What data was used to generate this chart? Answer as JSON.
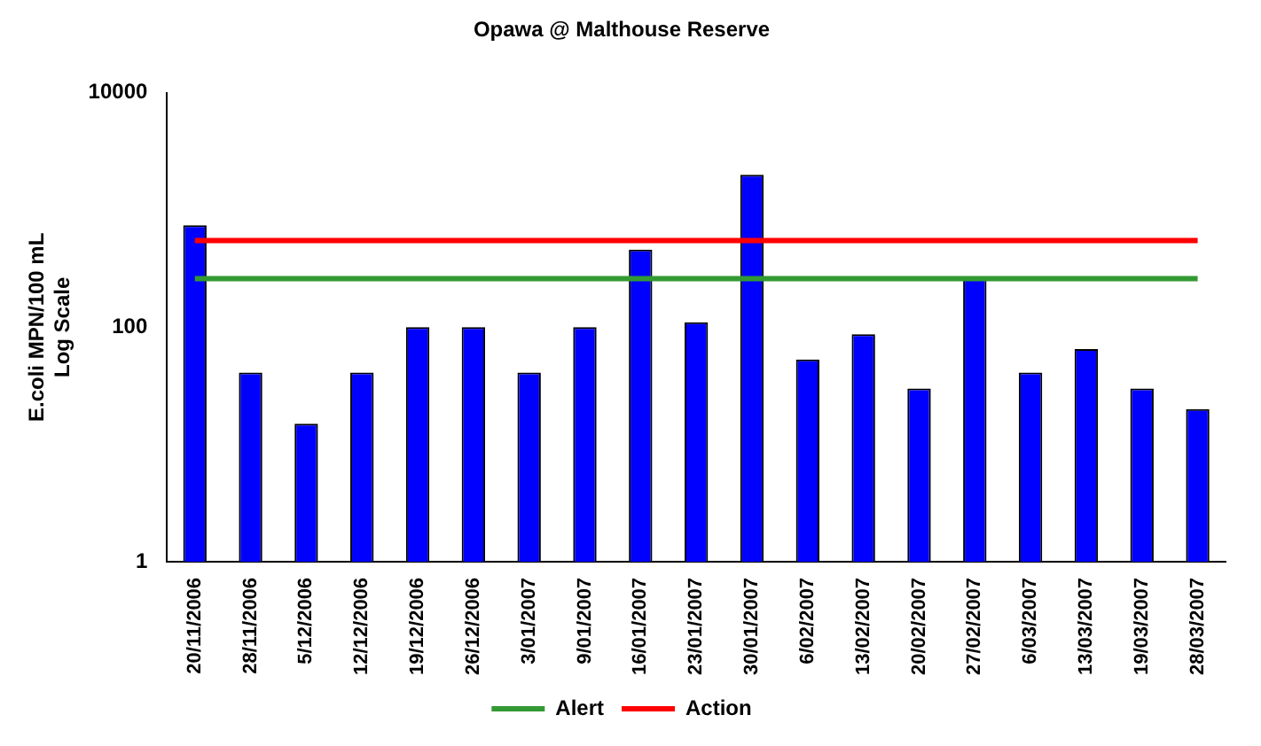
{
  "chart_data": {
    "type": "bar",
    "title": "Opawa @ Malthouse Reserve",
    "ylabel": "E.coli MPN/100 mL\nLog Scale",
    "categories": [
      "20/11/2006",
      "28/11/2006",
      "5/12/2006",
      "12/12/2006",
      "19/12/2006",
      "26/12/2006",
      "3/01/2007",
      "9/01/2007",
      "16/01/2007",
      "23/01/2007",
      "30/01/2007",
      "6/02/2007",
      "13/02/2007",
      "20/02/2007",
      "27/02/2007",
      "6/03/2007",
      "13/03/2007",
      "19/03/2007",
      "28/03/2007"
    ],
    "series": [
      {
        "color": "#0000ff",
        "values": [
          740,
          41,
          15,
          41,
          100,
          100,
          41,
          100,
          460,
          110,
          2000,
          53,
          87,
          30,
          260,
          41,
          65,
          30,
          20
        ]
      },
      {
        "type": "line",
        "name": "Alert",
        "color": "#339933",
        "values": [
          260,
          260,
          260,
          260,
          260,
          260,
          260,
          260,
          260,
          260,
          260,
          260,
          260,
          260,
          260,
          260,
          260,
          260,
          260
        ]
      },
      {
        "type": "line",
        "name": "Action",
        "color": "#ff0000",
        "values": [
          550,
          550,
          550,
          550,
          550,
          550,
          550,
          550,
          550,
          550,
          550,
          550,
          550,
          550,
          550,
          550,
          550,
          550,
          550
        ]
      }
    ],
    "log": "y",
    "ylim": [
      1,
      10000
    ],
    "yticks": [
      1,
      100,
      10000
    ],
    "grid": false,
    "legend": "bottom",
    "marker": "none"
  }
}
